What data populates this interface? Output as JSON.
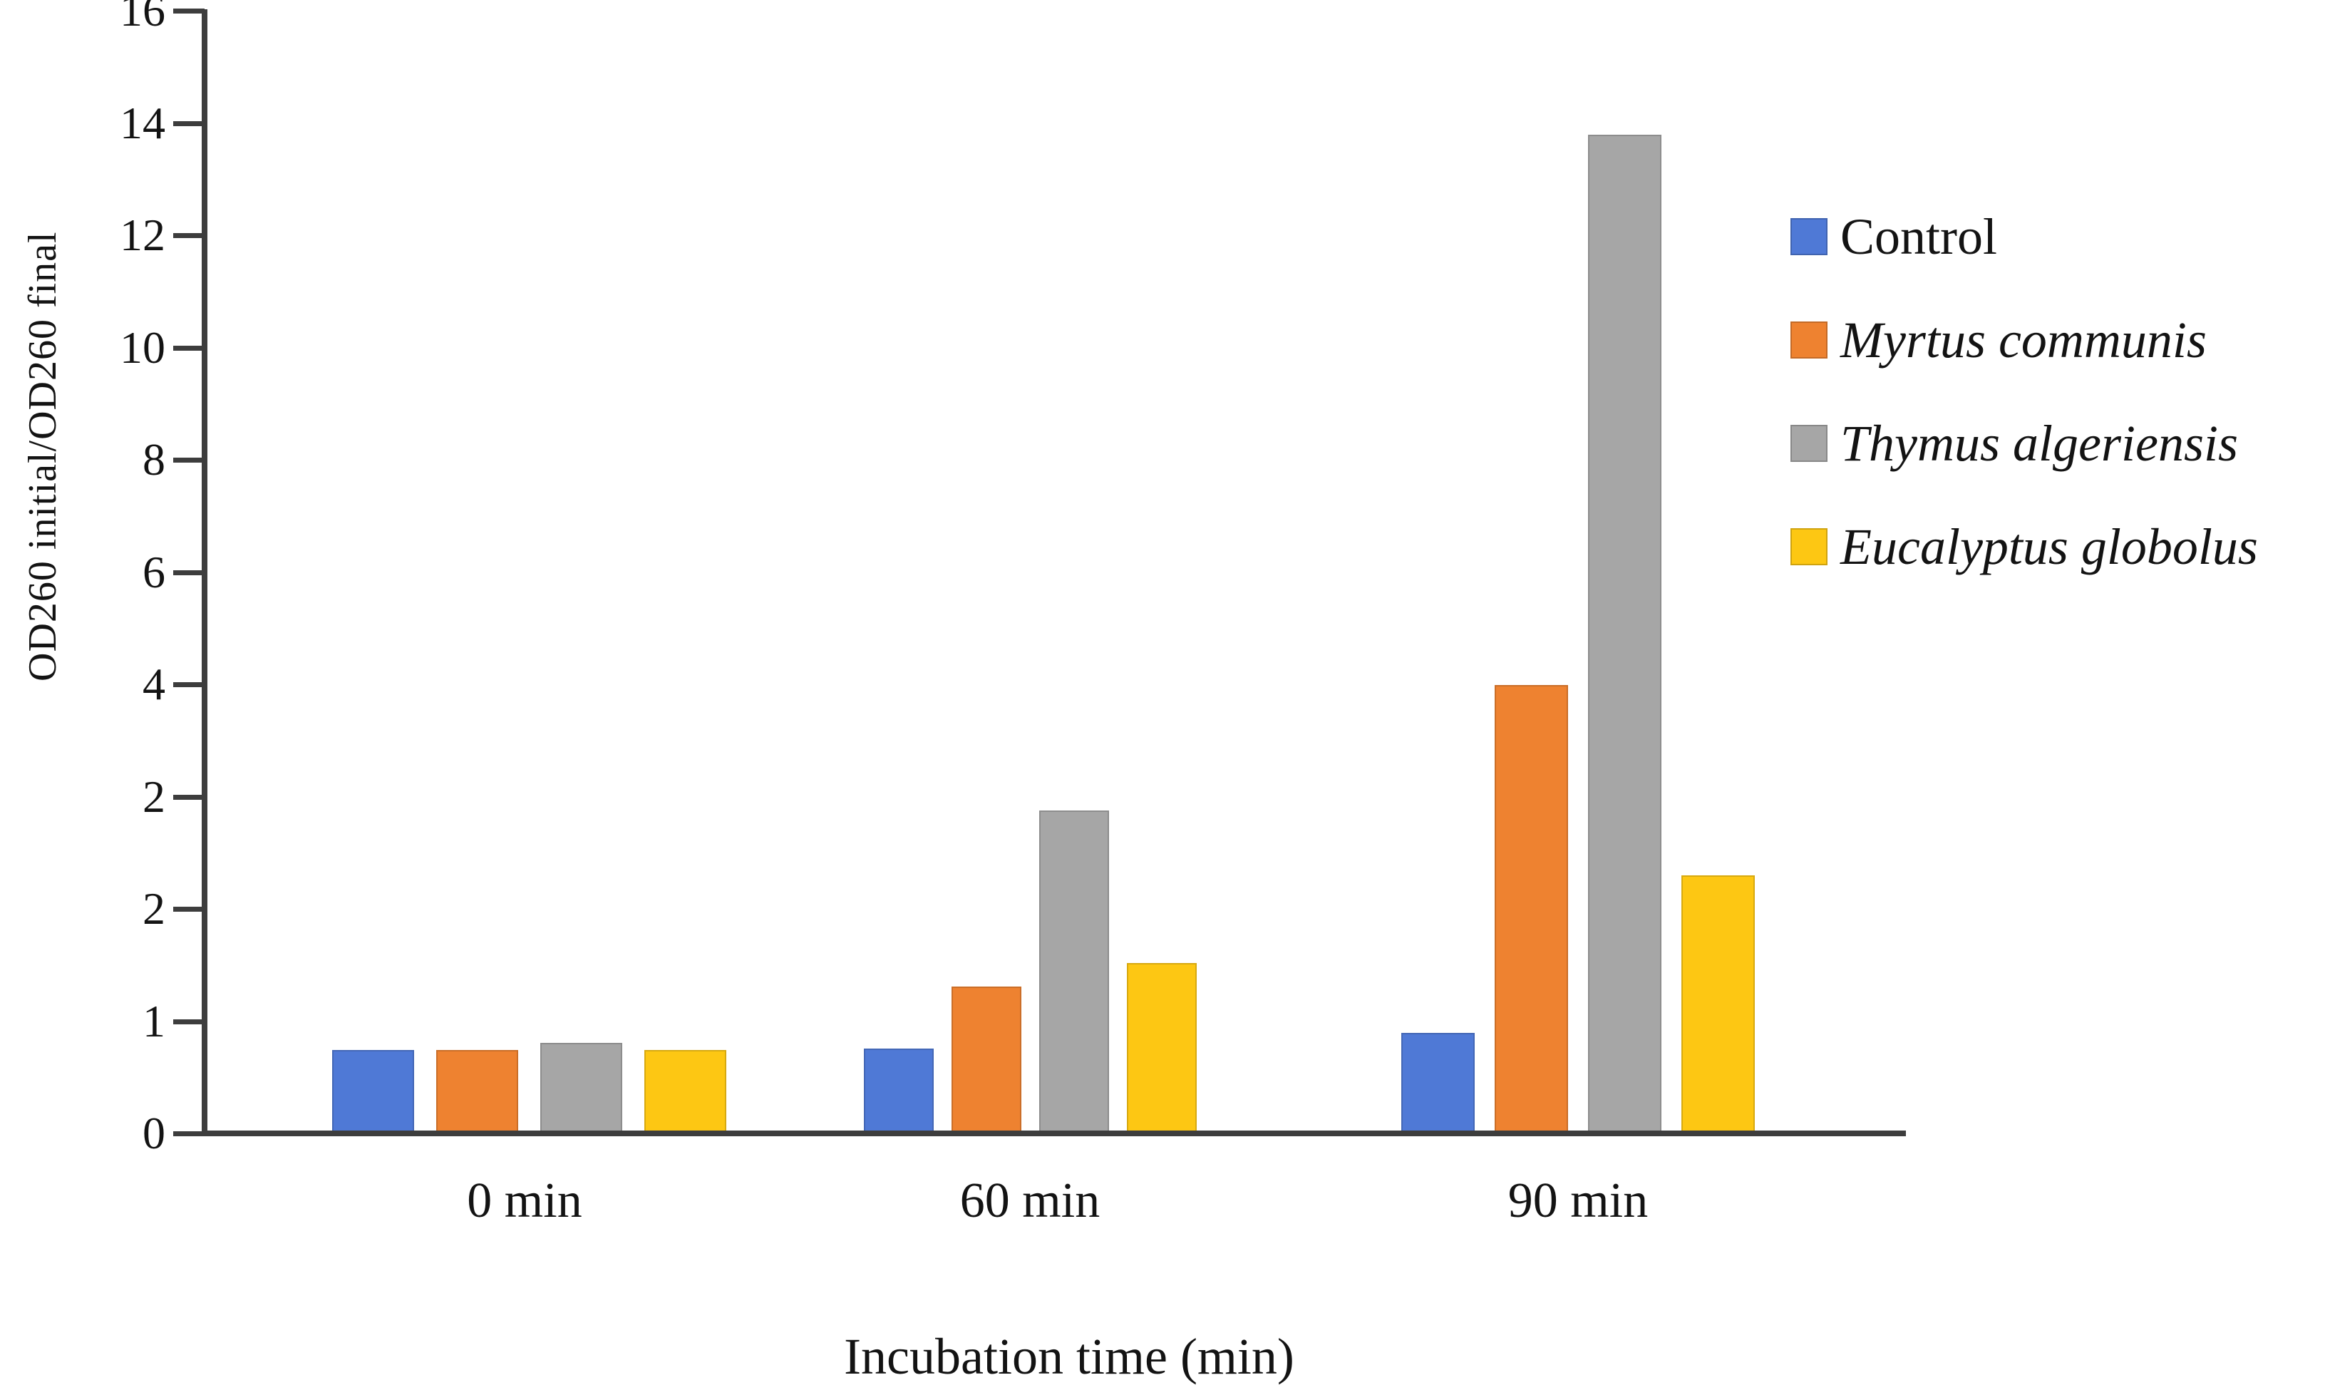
{
  "chart_data": {
    "type": "bar",
    "title": "",
    "xlabel": "Incubation time (min)",
    "ylabel": "OD260 initial/OD260 final",
    "categories": [
      "0 min",
      "60 min",
      "90 min"
    ],
    "y_tick_labels_top_to_bottom": [
      "16",
      "14",
      "12",
      "10",
      "8",
      "6",
      "4",
      "2",
      "2",
      "1",
      "0"
    ],
    "y_axis_note": "11 evenly spaced gridlines; labels as printed in the figure (duplicate 2 present)",
    "ylim_ticks": [
      0,
      10
    ],
    "grid": false,
    "legend_position": "right",
    "axis_color": "#3d3d3d",
    "series": [
      {
        "name": "Control",
        "color": "#4f79d6",
        "italic": false,
        "values": [
          0.7,
          0.75,
          0.9
        ],
        "heights_ticks": [
          0.72,
          0.73,
          0.87
        ]
      },
      {
        "name": "Myrtus communis",
        "color": "#ee8230",
        "italic": true,
        "values": [
          0.7,
          1.3,
          4.0
        ],
        "heights_ticks": [
          0.72,
          1.28,
          3.97
        ]
      },
      {
        "name": "Thymus algeriensis",
        "color": "#a6a6a6",
        "italic": true,
        "values": [
          0.8,
          1.9,
          14.0
        ],
        "heights_ticks": [
          0.78,
          2.85,
          8.87
        ]
      },
      {
        "name": "Eucalyptus globolus",
        "color": "#fdc713",
        "italic": true,
        "values": [
          0.7,
          1.5,
          2.3
        ],
        "heights_ticks": [
          0.72,
          1.49,
          2.27
        ]
      }
    ]
  }
}
